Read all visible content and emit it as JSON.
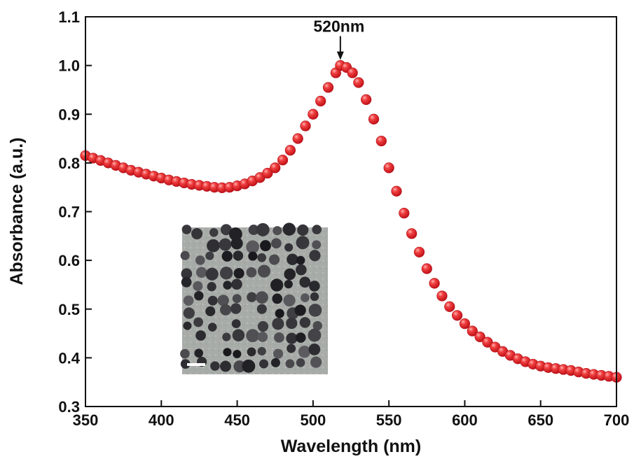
{
  "chart_data": {
    "type": "scatter",
    "title": "",
    "xlabel": "Wavelength (nm)",
    "ylabel": "Absorbance (a.u.)",
    "xlim": [
      350,
      700
    ],
    "ylim": [
      0.3,
      1.1
    ],
    "x_ticks": [
      "350",
      "400",
      "450",
      "500",
      "550",
      "600",
      "650",
      "700"
    ],
    "y_ticks": [
      "0.3",
      "0.4",
      "0.5",
      "0.6",
      "0.7",
      "0.8",
      "0.9",
      "1.0",
      "1.1"
    ],
    "grid": false,
    "marker_color": "#e8202a",
    "annotation": {
      "text": "520nm",
      "x": 518,
      "y": 1.0
    },
    "inset": "TEM micrograph of spherical nanoparticles",
    "series": [
      {
        "points": [
          [
            350,
            0.815
          ],
          [
            355,
            0.81
          ],
          [
            360,
            0.805
          ],
          [
            365,
            0.8
          ],
          [
            370,
            0.795
          ],
          [
            375,
            0.79
          ],
          [
            380,
            0.785
          ],
          [
            385,
            0.781
          ],
          [
            390,
            0.777
          ],
          [
            395,
            0.773
          ],
          [
            400,
            0.769
          ],
          [
            405,
            0.765
          ],
          [
            410,
            0.762
          ],
          [
            415,
            0.759
          ],
          [
            420,
            0.756
          ],
          [
            425,
            0.754
          ],
          [
            430,
            0.752
          ],
          [
            435,
            0.75
          ],
          [
            440,
            0.749
          ],
          [
            445,
            0.75
          ],
          [
            450,
            0.753
          ],
          [
            455,
            0.757
          ],
          [
            460,
            0.763
          ],
          [
            465,
            0.77
          ],
          [
            470,
            0.779
          ],
          [
            475,
            0.79
          ],
          [
            480,
            0.806
          ],
          [
            485,
            0.826
          ],
          [
            490,
            0.85
          ],
          [
            495,
            0.876
          ],
          [
            500,
            0.9
          ],
          [
            505,
            0.927
          ],
          [
            510,
            0.955
          ],
          [
            515,
            0.985
          ],
          [
            518,
            1.0
          ],
          [
            522,
            0.996
          ],
          [
            526,
            0.985
          ],
          [
            530,
            0.965
          ],
          [
            535,
            0.93
          ],
          [
            540,
            0.89
          ],
          [
            545,
            0.845
          ],
          [
            550,
            0.79
          ],
          [
            555,
            0.742
          ],
          [
            560,
            0.697
          ],
          [
            565,
            0.655
          ],
          [
            570,
            0.617
          ],
          [
            575,
            0.583
          ],
          [
            580,
            0.553
          ],
          [
            585,
            0.527
          ],
          [
            590,
            0.505
          ],
          [
            595,
            0.487
          ],
          [
            600,
            0.47
          ],
          [
            605,
            0.455
          ],
          [
            610,
            0.443
          ],
          [
            615,
            0.432
          ],
          [
            620,
            0.422
          ],
          [
            625,
            0.413
          ],
          [
            630,
            0.405
          ],
          [
            635,
            0.398
          ],
          [
            640,
            0.392
          ],
          [
            645,
            0.387
          ],
          [
            650,
            0.383
          ],
          [
            655,
            0.38
          ],
          [
            660,
            0.378
          ],
          [
            665,
            0.376
          ],
          [
            670,
            0.374
          ],
          [
            675,
            0.371
          ],
          [
            680,
            0.368
          ],
          [
            685,
            0.366
          ],
          [
            690,
            0.364
          ],
          [
            695,
            0.362
          ],
          [
            700,
            0.36
          ]
        ]
      }
    ]
  }
}
